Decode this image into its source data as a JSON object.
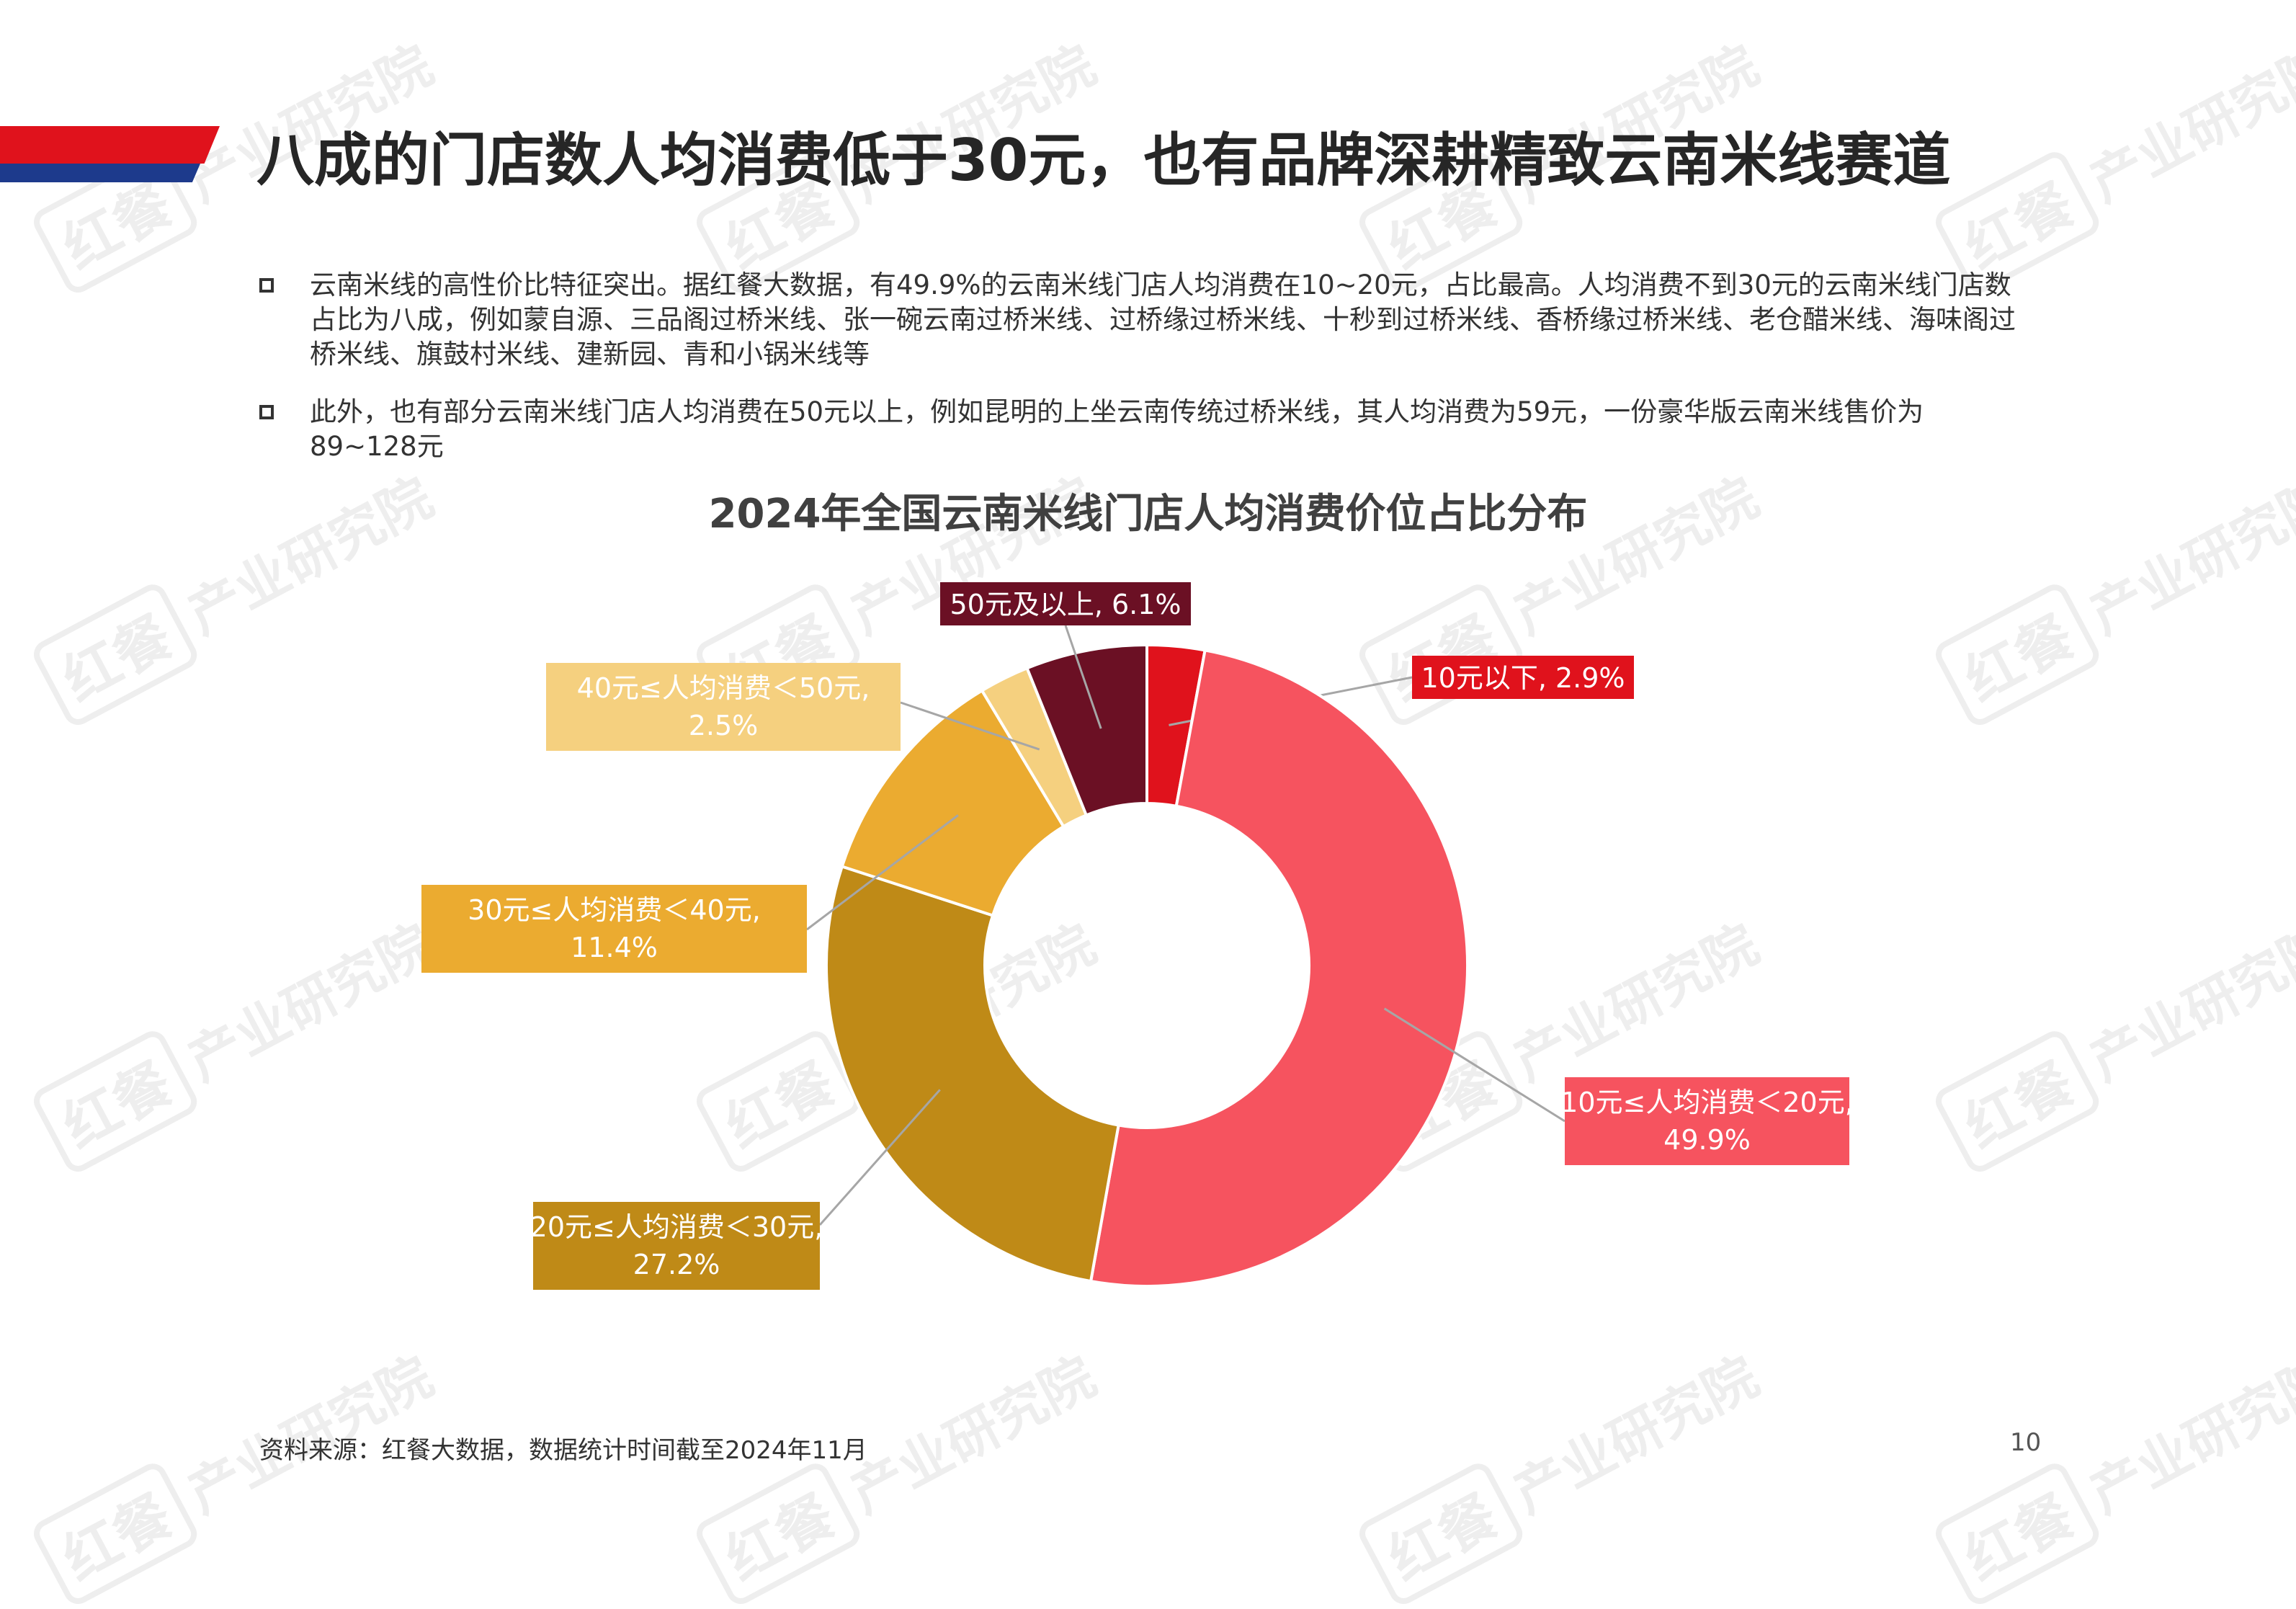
{
  "header": {
    "title": "八成的门店数人均消费低于30元，也有品牌深耕精致云南米线赛道"
  },
  "bullets": [
    {
      "text": "云南米线的高性价比特征突出。据红餐大数据，有49.9%的云南米线门店人均消费在10~20元，占比最高。人均消费不到30元的云南米线门店数占比为八成，例如蒙自源、三品阁过桥米线、张一碗云南过桥米线、过桥缘过桥米线、十秒到过桥米线、香桥缘过桥米线、老仓醋米线、海味阁过桥米线、旗鼓村米线、建新园、青和小锅米线等"
    },
    {
      "text": "此外，也有部分云南米线门店人均消费在50元以上，例如昆明的上坐云南传统过桥米线，其人均消费为59元，一份豪华版云南米线售价为89~128元"
    }
  ],
  "watermark": {
    "logo": "红餐",
    "text": "产业研究院"
  },
  "chart_data": {
    "type": "pie",
    "donut": true,
    "title": "2024年全国云南米线门店人均消费价位占比分布",
    "unit": "%",
    "slices": [
      {
        "label": "10元以下",
        "value": 2.9,
        "display": "10元以下, 2.9%",
        "color": "#e0121c"
      },
      {
        "label": "10元≤人均消费＜20元",
        "value": 49.9,
        "display": "10元≤人均消费＜20元, 49.9%",
        "color": "#f6535f"
      },
      {
        "label": "20元≤人均消费＜30元",
        "value": 27.2,
        "display": "20元≤人均消费＜30元, 27.2%",
        "color": "#bf8a17"
      },
      {
        "label": "30元≤人均消费＜40元",
        "value": 11.4,
        "display": "30元≤人均消费＜40元, 11.4%",
        "color": "#ebab30"
      },
      {
        "label": "40元≤人均消费＜50元",
        "value": 2.5,
        "display": "40元≤人均消费＜50元, 2.5%",
        "color": "#f5d07f"
      },
      {
        "label": "50元及以上",
        "value": 6.1,
        "display": "50元及以上, 6.1%",
        "color": "#6b1024"
      }
    ]
  },
  "footer": {
    "source": "资料来源：红餐大数据，数据统计时间截至2024年11月",
    "page_number": "10"
  }
}
